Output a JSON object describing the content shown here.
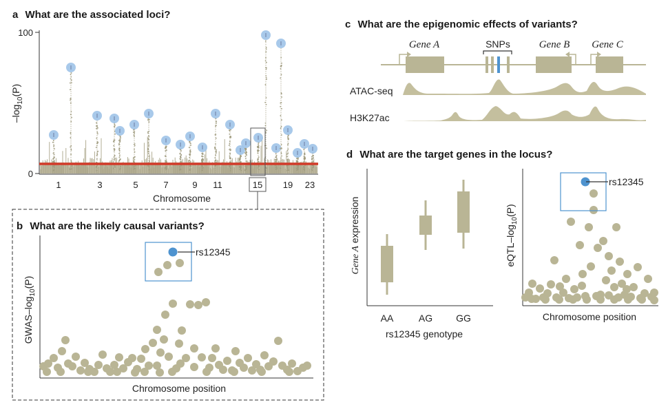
{
  "colors": {
    "dot": "#b9b595",
    "dot_dark": "#a9a585",
    "lead": "#4e93cf",
    "halo": "#9fc3e8",
    "threshold": "#d23b2a",
    "box": "#4e93cf",
    "track": "#c4bf9e"
  },
  "panel_a": {
    "letter": "a",
    "title": "What are the associated loci?",
    "ylabel_main": "–log",
    "ylabel_sub": "10",
    "ylabel_tail": "(P)",
    "ytick_top": "100",
    "ytick_bottom": "0",
    "xlabel": "Chromosome",
    "chrom_ticks": [
      "1",
      "3",
      "5",
      "7",
      "9",
      "11",
      "15",
      "19",
      "23"
    ],
    "highlight_label": "15"
  },
  "panel_b": {
    "letter": "b",
    "title": "What are the likely causal variants?",
    "ylabel_main": "GWAS–log",
    "ylabel_sub": "10",
    "ylabel_tail": "(P)",
    "xlabel": "Chromosome position",
    "snp_label": "rs12345"
  },
  "panel_c": {
    "letter": "c",
    "title": "What are the epigenomic effects of variants?",
    "gene_a": "Gene A",
    "snps": "SNPs",
    "gene_b": "Gene B",
    "gene_c": "Gene C",
    "track1": "ATAC-seq",
    "track2": "H3K27ac"
  },
  "panel_d": {
    "letter": "d",
    "title": "What are the target genes in the locus?",
    "box_ylabel_italic": "Gene A",
    "box_ylabel_rest": " expression",
    "genotypes": [
      "AA",
      "AG",
      "GG"
    ],
    "box_xlabel": "rs12345 genotype",
    "eqtl_ylabel_main": "eQTL–log",
    "eqtl_ylabel_sub": "10",
    "eqtl_ylabel_tail": "(P)",
    "eqtl_xlabel": "Chromosome position",
    "snp_label": "rs12345"
  }
}
